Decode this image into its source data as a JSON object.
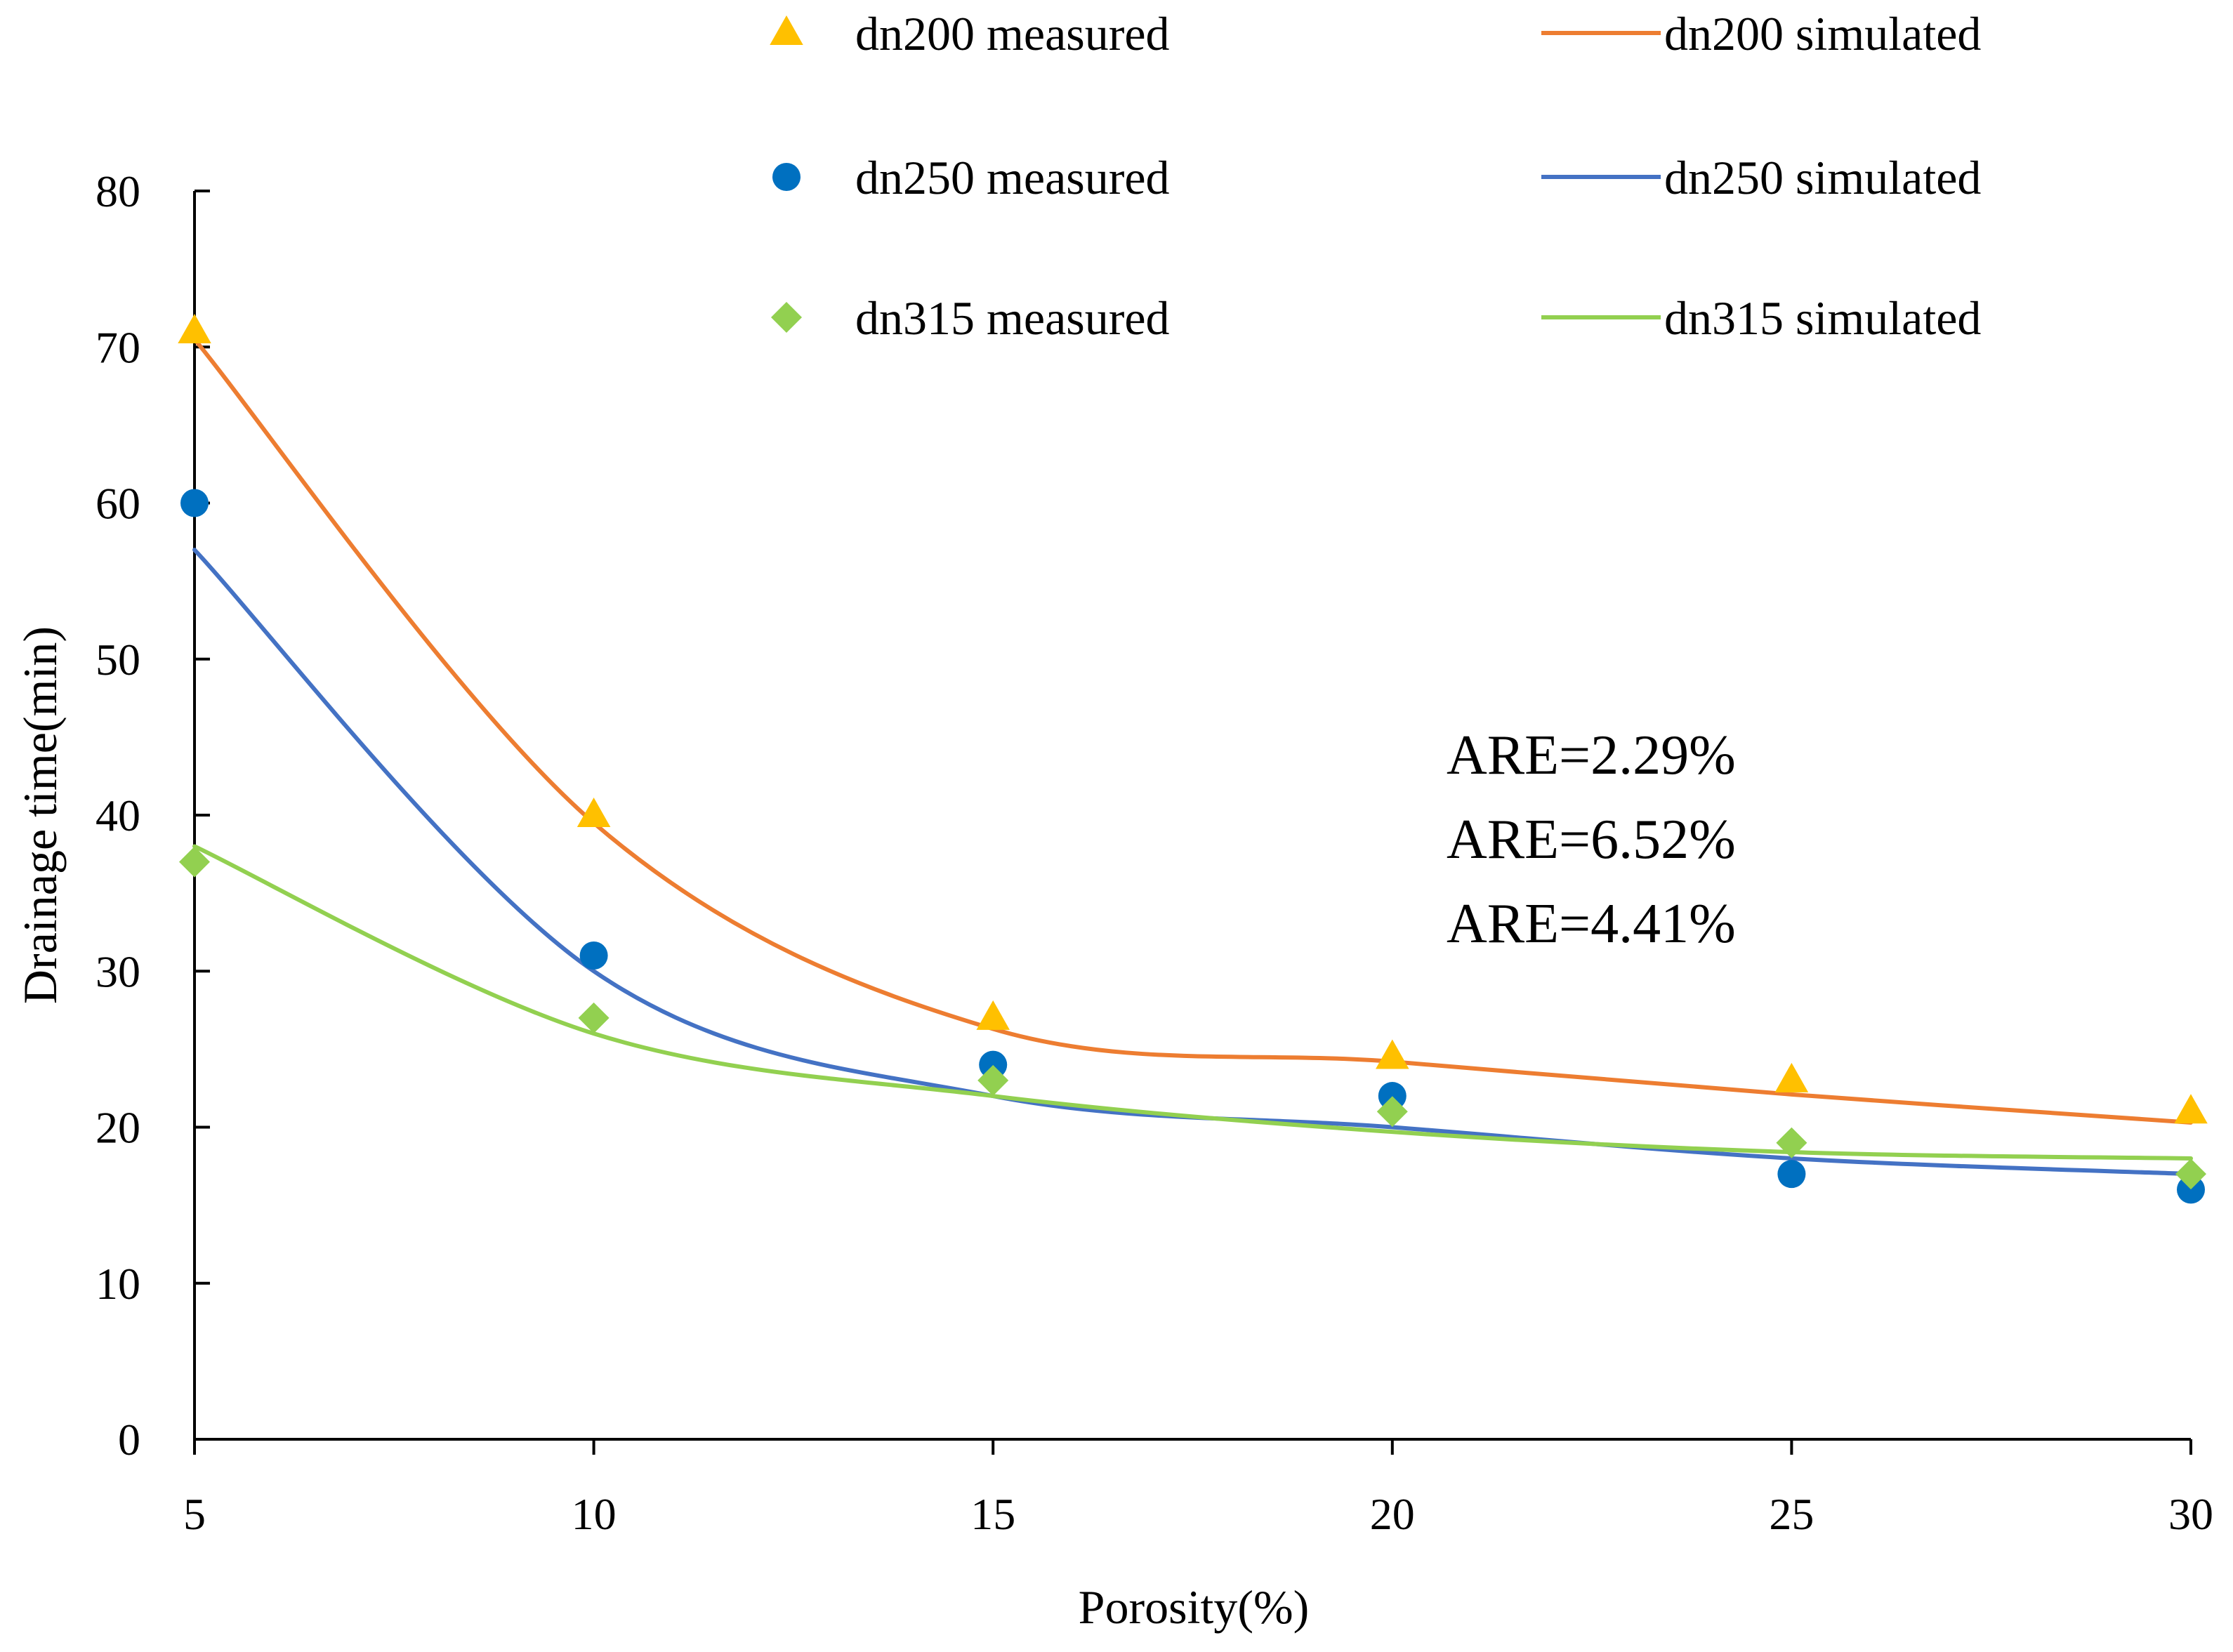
{
  "chart_data": {
    "type": "scatter",
    "title": "",
    "xlabel": "Porosity(%)",
    "ylabel": "Drainage time(min)",
    "xlim": [
      5,
      30
    ],
    "ylim": [
      0,
      80
    ],
    "x_ticks": [
      5,
      10,
      15,
      20,
      25,
      30
    ],
    "y_ticks": [
      0,
      10,
      20,
      30,
      40,
      50,
      60,
      70,
      80
    ],
    "grid": false,
    "legend_position": "top",
    "series": [
      {
        "name": "dn200 measured",
        "kind": "scatter",
        "marker": "triangle",
        "color": "#FFC000",
        "x": [
          5,
          10,
          15,
          20,
          25,
          30
        ],
        "y": [
          71,
          40,
          27,
          24.5,
          23,
          21
        ]
      },
      {
        "name": "dn250 measured",
        "kind": "scatter",
        "marker": "circle",
        "color": "#0070C0",
        "x": [
          5,
          10,
          15,
          20,
          25,
          30
        ],
        "y": [
          60,
          31,
          24,
          22,
          17,
          16
        ]
      },
      {
        "name": "dn315 measured",
        "kind": "scatter",
        "marker": "diamond",
        "color": "#92D050",
        "x": [
          5,
          10,
          15,
          20,
          25,
          30
        ],
        "y": [
          37,
          27,
          23,
          21,
          19,
          17
        ]
      },
      {
        "name": "dn200 simulated",
        "kind": "line",
        "color": "#ED7D31",
        "x": [
          5,
          10,
          15,
          20,
          25,
          30
        ],
        "y": [
          70.5,
          39.5,
          26.3,
          24.2,
          22.1,
          20.3
        ]
      },
      {
        "name": "dn250 simulated",
        "kind": "line",
        "color": "#4472C4",
        "x": [
          5,
          10,
          15,
          20,
          25,
          30
        ],
        "y": [
          57,
          30,
          22,
          20,
          18,
          17
        ]
      },
      {
        "name": "dn315 simulated",
        "kind": "line",
        "color": "#92D050",
        "x": [
          5,
          10,
          15,
          20,
          25,
          30
        ],
        "y": [
          38,
          26,
          22,
          19.7,
          18.4,
          18
        ]
      }
    ],
    "annotations": [
      "ARE=2.29%",
      "ARE=6.52%",
      "ARE=4.41%"
    ]
  }
}
